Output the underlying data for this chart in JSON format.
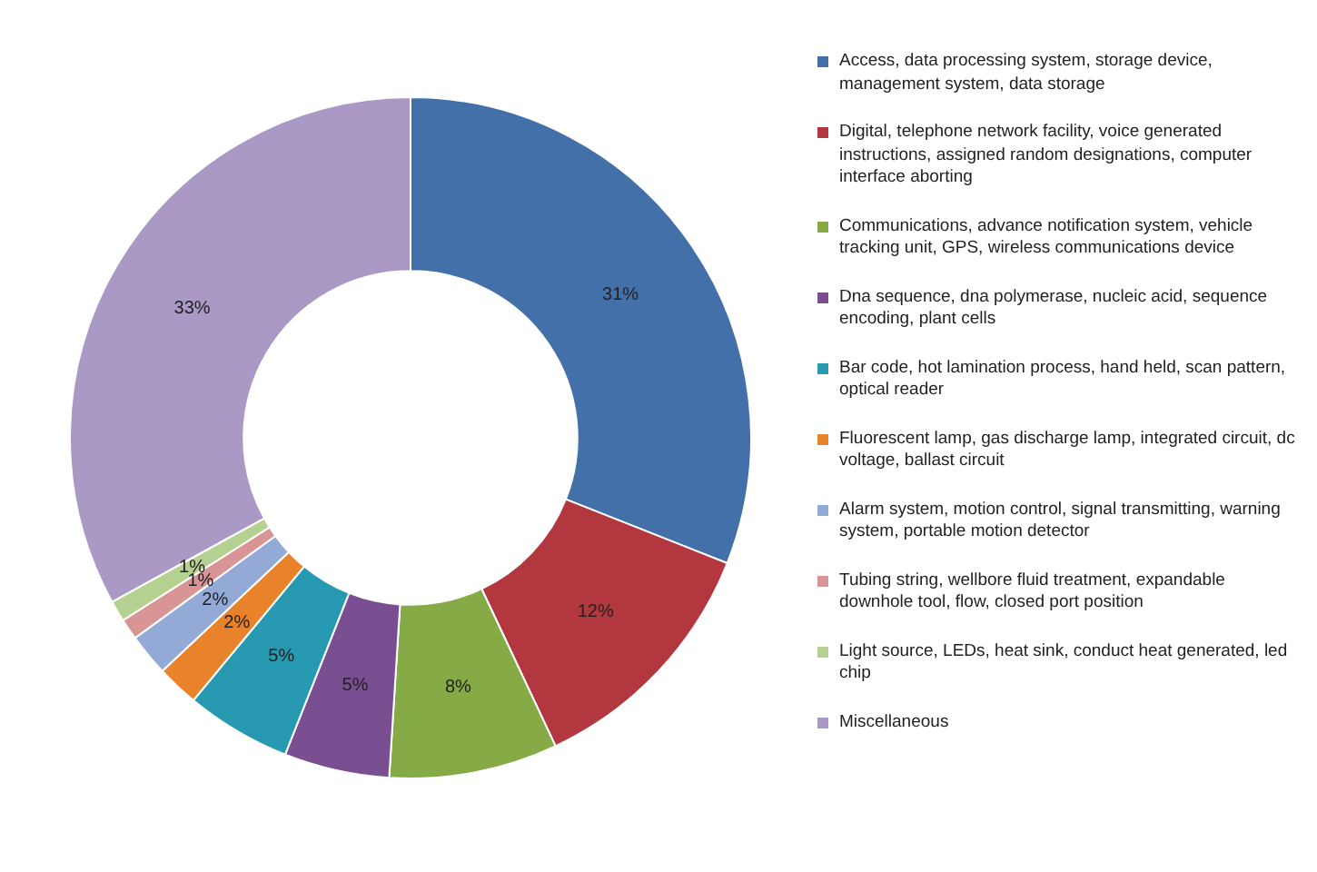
{
  "chart_data": {
    "type": "donut",
    "categories": [
      "Access, data processing system, storage device, management system, data storage",
      "Digital, telephone network facility, voice generated instructions, assigned random designations, computer interface aborting",
      "Communications, advance notification system, vehicle tracking unit, GPS, wireless communications device",
      "Dna sequence, dna polymerase, nucleic acid, sequence encoding, plant cells",
      "Bar code, hot lamination process, hand held, scan pattern, optical reader",
      "Fluorescent lamp, gas discharge lamp, integrated circuit, dc voltage, ballast circuit",
      "Alarm system, motion control, signal transmitting, warning system, portable motion detector",
      "Tubing string, wellbore fluid treatment, expandable downhole tool, flow, closed port position",
      "Light source, LEDs, heat sink, conduct heat generated, led chip",
      "Miscellaneous"
    ],
    "values": [
      31,
      12,
      8,
      5,
      5,
      2,
      2,
      1,
      1,
      33
    ],
    "value_labels": [
      "31%",
      "12%",
      "8%",
      "5%",
      "5%",
      "2%",
      "2%",
      "1%",
      "1%",
      "33%"
    ],
    "colors": [
      "#4470aa",
      "#b3373f",
      "#86aa46",
      "#7a4f91",
      "#2799b0",
      "#e8822b",
      "#93a9d6",
      "#d99595",
      "#b4d191",
      "#a999c4"
    ],
    "legend": "right"
  }
}
